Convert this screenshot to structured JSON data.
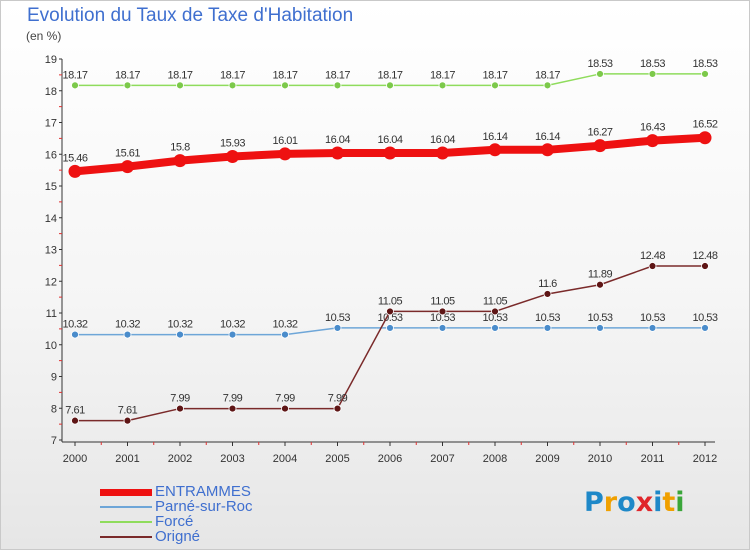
{
  "title": "Evolution du Taux de Taxe d'Habitation",
  "subtitle": "(en %)",
  "logo": {
    "text": "Proxiti",
    "letters": [
      "P",
      "r",
      "o",
      "x",
      "i",
      "t",
      "i"
    ],
    "colors": [
      "#1e88c8",
      "#f0a000",
      "#1e88c8",
      "#e0262b",
      "#1e88c8",
      "#f0a000",
      "#3aa63a"
    ]
  },
  "chart_data": {
    "type": "line",
    "x": [
      "2000",
      "2001",
      "2002",
      "2003",
      "2004",
      "2005",
      "2006",
      "2007",
      "2008",
      "2009",
      "2010",
      "2011",
      "2012"
    ],
    "ylim": [
      7,
      19
    ],
    "y_ticks": [
      "7",
      "8",
      "9",
      "10",
      "11",
      "12",
      "13",
      "14",
      "15",
      "16",
      "17",
      "18",
      "19"
    ],
    "grid": false,
    "legend_position": "bottom-left",
    "series": [
      {
        "name": "Forcé",
        "color": "#8fdc5c",
        "marker_color": "#7cc94a",
        "width": 1.5,
        "marker_r": 3.5,
        "values": [
          18.17,
          18.17,
          18.17,
          18.17,
          18.17,
          18.17,
          18.17,
          18.17,
          18.17,
          18.17,
          18.53,
          18.53,
          18.53
        ],
        "labels": [
          "18.17",
          "18.17",
          "18.17",
          "18.17",
          "18.17",
          "18.17",
          "18.17",
          "18.17",
          "18.17",
          "18.17",
          "18.53",
          "18.53",
          "18.53"
        ]
      },
      {
        "name": "Parné-sur-Roc",
        "color": "#6ea6d8",
        "marker_color": "#4a8ccb",
        "width": 1.5,
        "marker_r": 3.5,
        "values": [
          10.32,
          10.32,
          10.32,
          10.32,
          10.32,
          10.53,
          10.53,
          10.53,
          10.53,
          10.53,
          10.53,
          10.53,
          10.53
        ],
        "labels": [
          "10.32",
          "10.32",
          "10.32",
          "10.32",
          "10.32",
          "10.53",
          "10.53",
          "10.53",
          "10.53",
          "10.53",
          "10.53",
          "10.53",
          "10.53"
        ]
      },
      {
        "name": "Origné",
        "color": "#7a2a2a",
        "marker_color": "#5e1515",
        "width": 1.5,
        "marker_r": 3.5,
        "values": [
          7.61,
          7.61,
          7.99,
          7.99,
          7.99,
          7.99,
          11.05,
          11.05,
          11.05,
          11.6,
          11.89,
          12.48,
          12.48
        ],
        "labels": [
          "7.61",
          "7.61",
          "7.99",
          "7.99",
          "7.99",
          "7.99",
          "11.05",
          "11.05",
          "11.05",
          "11.6",
          "11.89",
          "12.48",
          "12.48"
        ]
      },
      {
        "name": "ENTRAMMES",
        "color": "#ee1111",
        "marker_color": "#ee1111",
        "width": 8,
        "marker_r": 6.5,
        "values": [
          15.46,
          15.61,
          15.8,
          15.93,
          16.01,
          16.04,
          16.04,
          16.04,
          16.14,
          16.14,
          16.27,
          16.43,
          16.52
        ],
        "labels": [
          "15.46",
          "15.61",
          "15.8",
          "15.93",
          "16.01",
          "16.04",
          "16.04",
          "16.04",
          "16.14",
          "16.14",
          "16.27",
          "16.43",
          "16.52"
        ]
      }
    ],
    "legend": [
      {
        "label": "ENTRAMMES",
        "color": "#ee1111",
        "thickness": 7
      },
      {
        "label": "Parné-sur-Roc",
        "color": "#6ea6d8",
        "thickness": 2
      },
      {
        "label": "Forcé",
        "color": "#8fdc5c",
        "thickness": 2
      },
      {
        "label": "Origné",
        "color": "#7a2a2a",
        "thickness": 2
      }
    ],
    "legend_text_color": "#3f6fcf"
  }
}
